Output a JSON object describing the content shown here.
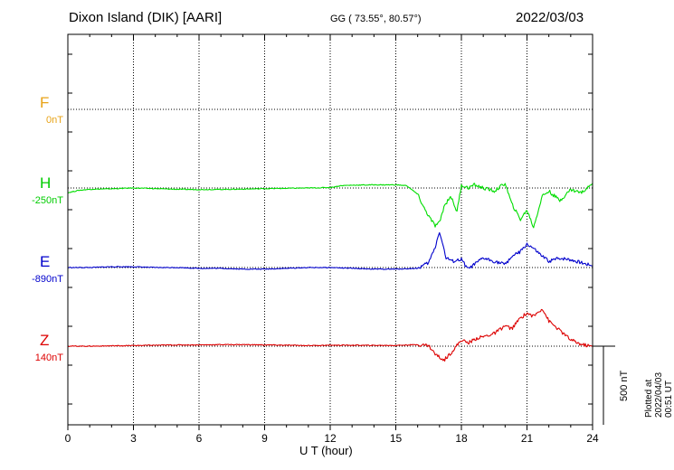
{
  "header": {
    "station": "Dixon Island (DIK)  [AARI]",
    "coords": "GG ( 73.55°,  80.57°)",
    "date": "2022/03/03"
  },
  "footer": {
    "plotted": "Plotted at 2022/04/03 00:51 UT",
    "scale": "500 nT"
  },
  "chart_data": {
    "type": "line",
    "xlabel": "U T (hour)",
    "xlim": [
      0,
      24
    ],
    "xticks": [
      "0",
      "3",
      "6",
      "9",
      "12",
      "15",
      "18",
      "21",
      "24"
    ],
    "grid": true,
    "scale_bar_nT": 500,
    "series": [
      {
        "name": "F",
        "baseline": "0nT",
        "color": "#e8a317",
        "x": [],
        "y": []
      },
      {
        "name": "H",
        "baseline": "-250nT",
        "color": "#00dd00",
        "x": [
          0,
          0.5,
          1,
          2,
          3,
          4,
          5,
          6,
          7,
          8,
          9,
          10,
          11,
          12,
          12.5,
          13,
          14,
          15,
          15.5,
          16,
          16.3,
          16.6,
          16.8,
          17,
          17.2,
          17.5,
          17.8,
          18,
          18.3,
          18.6,
          19,
          19.5,
          20,
          20.3,
          20.7,
          21,
          21.3,
          21.7,
          22,
          22.5,
          23,
          23.5,
          24
        ],
        "y": [
          -30,
          -15,
          -8,
          -5,
          0,
          -4,
          -8,
          -10,
          -9,
          -7,
          -4,
          -2,
          0,
          3,
          15,
          18,
          20,
          20,
          15,
          -40,
          -130,
          -200,
          -240,
          -220,
          -120,
          -50,
          -150,
          20,
          0,
          20,
          0,
          -20,
          30,
          -100,
          -200,
          -140,
          -250,
          -50,
          -20,
          -80,
          -10,
          -30,
          30
        ]
      },
      {
        "name": "E",
        "baseline": "-890nT",
        "color": "#0000cc",
        "x": [
          0,
          1,
          2,
          3,
          4,
          5,
          6,
          7,
          8,
          9,
          10,
          11,
          12,
          13,
          14,
          15,
          16,
          16.5,
          16.8,
          17,
          17.3,
          17.6,
          18,
          18.3,
          18.6,
          19,
          19.5,
          20,
          20.3,
          20.7,
          21,
          21.3,
          21.7,
          22,
          22.5,
          23,
          23.5,
          24
        ],
        "y": [
          0,
          0,
          5,
          5,
          0,
          0,
          -5,
          -5,
          -10,
          -10,
          -5,
          0,
          0,
          -5,
          -10,
          -10,
          -5,
          30,
          130,
          230,
          60,
          40,
          50,
          -10,
          20,
          60,
          40,
          20,
          70,
          100,
          150,
          120,
          70,
          40,
          60,
          50,
          30,
          10
        ]
      },
      {
        "name": "Z",
        "baseline": "140nT",
        "color": "#dd0000",
        "x": [
          0,
          1,
          2,
          3,
          4,
          5,
          6,
          7,
          8,
          9,
          10,
          11,
          12,
          13,
          14,
          15,
          16,
          16.5,
          16.8,
          17.2,
          17.6,
          18,
          18.3,
          18.7,
          19,
          19.5,
          20,
          20.3,
          20.7,
          21,
          21.3,
          21.7,
          22,
          22.5,
          23,
          23.5,
          24
        ],
        "y": [
          0,
          0,
          2,
          4,
          6,
          8,
          8,
          10,
          10,
          8,
          6,
          4,
          6,
          6,
          5,
          5,
          10,
          5,
          -50,
          -90,
          -30,
          40,
          20,
          50,
          60,
          80,
          130,
          110,
          180,
          210,
          190,
          240,
          160,
          100,
          40,
          10,
          0
        ]
      }
    ]
  }
}
